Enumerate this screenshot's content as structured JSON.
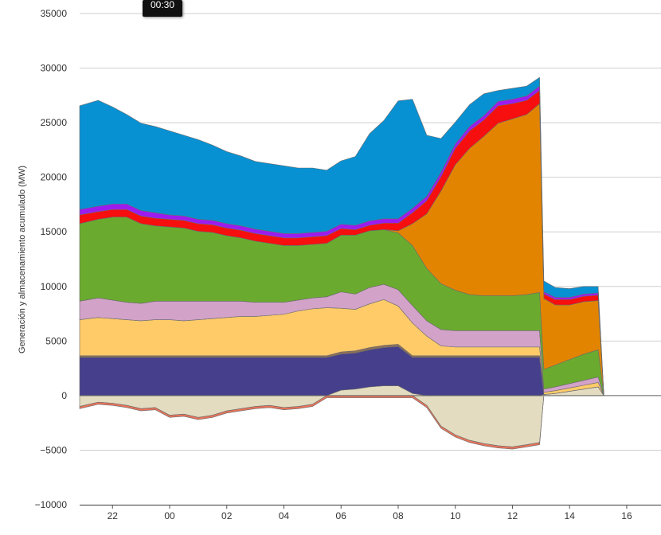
{
  "tooltip": {
    "time": "00:30"
  },
  "colors": {
    "grid": "#cfcfcf",
    "axis_line": "#555555",
    "zero_line": "#666666",
    "area_stroke": "#6b6b6b"
  },
  "chart_data": {
    "type": "area",
    "stacked": true,
    "ylabel": "Generación y almacenamiento acumulado (MW)",
    "ylim": [
      -10000,
      35000
    ],
    "yticks": [
      35000,
      30000,
      25000,
      20000,
      15000,
      10000,
      5000,
      0,
      -5000,
      -10000
    ],
    "ytick_labels": [
      "35000",
      "30000",
      "25000",
      "20000",
      "15000",
      "10000",
      "5000",
      "0",
      "−5000",
      "−10000"
    ],
    "xlim": [
      21.0,
      25.2,
      31.3
    ],
    "xticks": [
      22,
      24,
      26,
      28,
      30,
      32,
      34,
      36,
      38,
      40
    ],
    "xtick_labels": [
      "22",
      "00",
      "02",
      "04",
      "06",
      "08",
      "10",
      "12",
      "14",
      "16"
    ],
    "xlim_hours": [
      20.85,
      41.2
    ],
    "x": [
      20.85,
      21.5,
      22.0,
      22.5,
      23.0,
      23.5,
      24.0,
      24.5,
      25.0,
      25.5,
      26.0,
      26.5,
      27.0,
      27.5,
      28.0,
      28.5,
      29.0,
      29.5,
      30.0,
      30.5,
      31.0,
      31.5,
      32.0,
      32.5,
      33.0,
      33.5,
      34.0,
      34.5,
      35.0,
      35.5,
      36.0,
      36.5,
      36.95,
      37.1,
      37.5,
      38.0,
      38.5,
      39.0,
      39.2
    ],
    "negative_series": [
      {
        "name": "",
        "color": "#e3dcc0",
        "values": [
          -1000,
          -600,
          -700,
          -900,
          -1200,
          -1100,
          -1800,
          -1700,
          -2000,
          -1800,
          -1400,
          -1200,
          -1000,
          -900,
          -1100,
          -1000,
          -800,
          0,
          0,
          0,
          0,
          0,
          0,
          0,
          -900,
          -2800,
          -3600,
          -4100,
          -4400,
          -4600,
          -4700,
          -4500,
          -4300,
          0,
          0,
          0,
          0,
          0,
          0
        ]
      },
      {
        "name": "",
        "color": "#e8735a",
        "values": [
          -200,
          -200,
          -200,
          -200,
          -200,
          -200,
          -200,
          -200,
          -200,
          -200,
          -200,
          -200,
          -200,
          -200,
          -200,
          -200,
          -200,
          -200,
          -200,
          -200,
          -200,
          -200,
          -200,
          -200,
          -200,
          -200,
          -200,
          -200,
          -200,
          -200,
          -200,
          -200,
          -200,
          0,
          0,
          0,
          0,
          0,
          0
        ]
      }
    ],
    "series": [
      {
        "name": "",
        "color": "#e3dcc0",
        "values": [
          0,
          0,
          0,
          0,
          0,
          0,
          0,
          0,
          0,
          0,
          0,
          0,
          0,
          0,
          0,
          0,
          0,
          0,
          500,
          600,
          800,
          900,
          900,
          200,
          0,
          0,
          0,
          0,
          0,
          0,
          0,
          0,
          0,
          100,
          200,
          400,
          600,
          800,
          0
        ]
      },
      {
        "name": "",
        "color": "#453f8c",
        "values": [
          3500,
          3500,
          3500,
          3500,
          3500,
          3500,
          3500,
          3500,
          3500,
          3500,
          3500,
          3500,
          3500,
          3500,
          3500,
          3500,
          3500,
          3500,
          3300,
          3300,
          3400,
          3500,
          3600,
          3300,
          3500,
          3500,
          3500,
          3500,
          3500,
          3500,
          3500,
          3500,
          3500,
          0,
          0,
          0,
          0,
          0,
          0
        ]
      },
      {
        "name": "",
        "color": "#8d6e58",
        "values": [
          150,
          150,
          150,
          150,
          150,
          150,
          150,
          150,
          150,
          150,
          150,
          150,
          150,
          150,
          150,
          150,
          150,
          150,
          200,
          200,
          200,
          200,
          200,
          150,
          150,
          150,
          150,
          150,
          150,
          150,
          150,
          150,
          150,
          0,
          0,
          0,
          0,
          0,
          0
        ]
      },
      {
        "name": "",
        "color": "#ffcb69",
        "values": [
          3300,
          3500,
          3400,
          3300,
          3200,
          3300,
          3300,
          3200,
          3300,
          3400,
          3500,
          3600,
          3600,
          3700,
          3800,
          4100,
          4300,
          4400,
          4000,
          3800,
          4000,
          4200,
          3500,
          3000,
          1800,
          900,
          800,
          800,
          800,
          800,
          800,
          800,
          800,
          200,
          250,
          300,
          350,
          400,
          0
        ]
      },
      {
        "name": "",
        "color": "#d2a2c8",
        "values": [
          1700,
          1800,
          1700,
          1600,
          1600,
          1700,
          1700,
          1800,
          1700,
          1600,
          1500,
          1400,
          1300,
          1200,
          1100,
          1000,
          1000,
          1000,
          1500,
          1400,
          1500,
          1400,
          1500,
          1600,
          1400,
          1500,
          1500,
          1500,
          1500,
          1500,
          1500,
          1500,
          1500,
          300,
          350,
          400,
          450,
          500,
          0
        ]
      },
      {
        "name": "",
        "color": "#6aab2f",
        "values": [
          7100,
          7200,
          7600,
          7800,
          7300,
          6900,
          6800,
          6700,
          6400,
          6300,
          6000,
          5800,
          5600,
          5400,
          5200,
          5000,
          4900,
          4900,
          5200,
          5400,
          5200,
          5000,
          5200,
          5500,
          4800,
          4200,
          3700,
          3300,
          3200,
          3200,
          3200,
          3300,
          3500,
          1800,
          2000,
          2200,
          2400,
          2500,
          0
        ]
      },
      {
        "name": "",
        "color": "#e38400",
        "values": [
          0,
          0,
          0,
          0,
          0,
          0,
          0,
          0,
          0,
          0,
          0,
          0,
          0,
          0,
          0,
          0,
          0,
          0,
          0,
          0,
          0,
          0,
          200,
          2000,
          5000,
          8500,
          11500,
          13400,
          14600,
          15800,
          16200,
          16500,
          17300,
          6500,
          5500,
          5000,
          4800,
          4500,
          0
        ]
      },
      {
        "name": "",
        "color": "#f70e0e",
        "values": [
          800,
          700,
          700,
          700,
          700,
          700,
          700,
          700,
          700,
          700,
          700,
          700,
          700,
          700,
          700,
          700,
          700,
          700,
          600,
          500,
          500,
          600,
          700,
          1000,
          1200,
          1300,
          1500,
          1600,
          1500,
          1600,
          1400,
          1300,
          1200,
          400,
          500,
          500,
          500,
          500,
          0
        ]
      },
      {
        "name": "",
        "color": "#9c1cf0",
        "values": [
          500,
          500,
          500,
          500,
          500,
          500,
          400,
          400,
          400,
          400,
          400,
          400,
          400,
          400,
          400,
          400,
          400,
          400,
          400,
          400,
          400,
          400,
          400,
          400,
          400,
          400,
          400,
          400,
          400,
          400,
          400,
          400,
          400,
          200,
          200,
          200,
          200,
          200,
          0
        ]
      },
      {
        "name": "",
        "color": "#0891d2",
        "values": [
          9500,
          9700,
          8900,
          8200,
          8000,
          7900,
          7700,
          7400,
          7300,
          6900,
          6600,
          6400,
          6200,
          6200,
          6200,
          6000,
          5900,
          5600,
          5800,
          6300,
          8000,
          9000,
          10800,
          10000,
          5600,
          3100,
          2000,
          2000,
          2000,
          1000,
          1000,
          900,
          800,
          1000,
          900,
          800,
          700,
          600,
          0
        ]
      }
    ]
  }
}
